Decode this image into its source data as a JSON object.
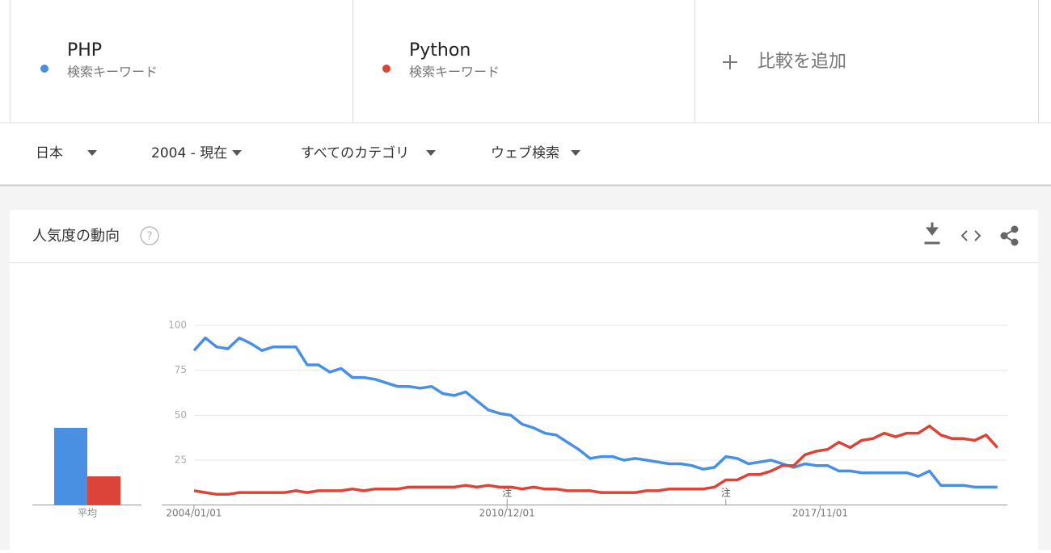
{
  "comparison": [
    {
      "term": "PHP",
      "kind": "検索キーワード"
    },
    {
      "term": "Python",
      "kind": "検索キーワード"
    }
  ],
  "add_compare": "比較を追加",
  "filters": [
    "日本",
    "2004 - 現在",
    "すべてのカテゴリ",
    "ウェブ検索"
  ],
  "card_title": "人気度の動向",
  "chart_data": {
    "type": "line",
    "x": [
      "2004/01/01",
      "2004/04/01",
      "2004/07/01",
      "2004/10/01",
      "2005/01/01",
      "2005/04/01",
      "2005/07/01",
      "2005/10/01",
      "2006/01/01",
      "2006/04/01",
      "2006/07/01",
      "2006/10/01",
      "2007/01/01",
      "2007/04/01",
      "2007/07/01",
      "2007/10/01",
      "2008/01/01",
      "2008/04/01",
      "2008/07/01",
      "2008/10/01",
      "2009/01/01",
      "2009/04/01",
      "2009/07/01",
      "2009/10/01",
      "2010/01/01",
      "2010/04/01",
      "2010/07/01",
      "2010/10/01",
      "2011/01/01",
      "2011/04/01",
      "2011/07/01",
      "2011/10/01",
      "2012/01/01",
      "2012/04/01",
      "2012/07/01",
      "2012/10/01",
      "2013/01/01",
      "2013/04/01",
      "2013/07/01",
      "2013/10/01",
      "2014/01/01",
      "2014/04/01",
      "2014/07/01",
      "2014/10/01",
      "2015/01/01",
      "2015/04/01",
      "2015/07/01",
      "2015/10/01",
      "2016/01/01",
      "2016/04/01",
      "2016/07/01",
      "2016/10/01",
      "2017/01/01",
      "2017/04/01",
      "2017/07/01",
      "2017/10/01",
      "2018/01/01",
      "2018/04/01",
      "2018/07/01",
      "2018/10/01",
      "2019/01/01",
      "2019/04/01",
      "2019/07/01",
      "2019/10/01",
      "2020/01/01",
      "2020/04/01",
      "2020/07/01",
      "2020/10/01",
      "2021/01/01",
      "2021/04/01",
      "2021/07/01",
      "2021/10/01"
    ],
    "series": [
      {
        "name": "PHP",
        "color": "#4a90e2",
        "values": [
          86,
          93,
          88,
          87,
          93,
          90,
          86,
          88,
          88,
          88,
          78,
          78,
          74,
          76,
          71,
          71,
          70,
          68,
          66,
          66,
          65,
          66,
          62,
          61,
          63,
          58,
          53,
          51,
          50,
          45,
          43,
          40,
          39,
          35,
          31,
          26,
          27,
          27,
          25,
          26,
          25,
          24,
          23,
          23,
          22,
          20,
          21,
          27,
          26,
          23,
          24,
          25,
          23,
          21,
          23,
          22,
          22,
          19,
          19,
          18,
          18,
          18,
          18,
          18,
          16,
          19,
          11,
          11,
          11,
          10,
          10,
          10
        ]
      },
      {
        "name": "Python",
        "color": "#db4437",
        "values": [
          8,
          7,
          6,
          6,
          7,
          7,
          7,
          7,
          7,
          8,
          7,
          8,
          8,
          8,
          9,
          8,
          9,
          9,
          9,
          10,
          10,
          10,
          10,
          10,
          11,
          10,
          11,
          10,
          10,
          9,
          10,
          9,
          9,
          8,
          8,
          8,
          7,
          7,
          7,
          7,
          8,
          8,
          9,
          9,
          9,
          9,
          10,
          14,
          14,
          17,
          17,
          19,
          22,
          22,
          28,
          30,
          31,
          35,
          32,
          36,
          37,
          40,
          38,
          40,
          40,
          44,
          39,
          37,
          37,
          36,
          39,
          32
        ]
      }
    ],
    "xlim": [
      "2004/01/01",
      "2021/12/01"
    ],
    "xticks": [
      "2004/01/01",
      "2010/12/01",
      "2017/11/01"
    ],
    "ylim": [
      0,
      100
    ],
    "yticks": [
      25,
      50,
      75,
      100
    ],
    "grid": true,
    "average": {
      "label": "平均",
      "values": [
        43,
        16
      ]
    },
    "annotations": [
      {
        "x": "2010/12/01",
        "label": "注"
      },
      {
        "x": "2015/10/01",
        "label": "注"
      }
    ]
  }
}
